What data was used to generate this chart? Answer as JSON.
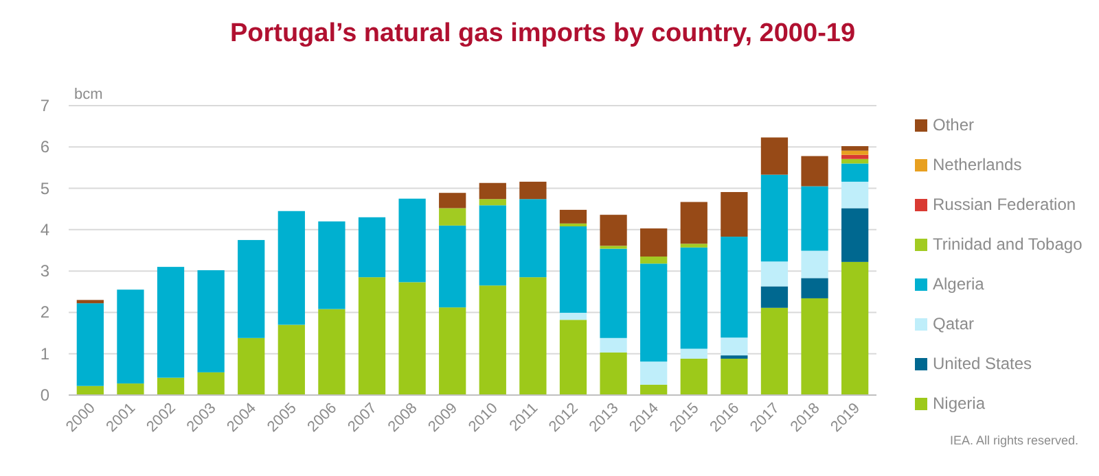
{
  "chart_data": {
    "type": "bar",
    "stacked": true,
    "title": "Portugal’s natural gas imports by country, 2000-19",
    "ylabel": "bcm",
    "categories": [
      "2000",
      "2001",
      "2002",
      "2003",
      "2004",
      "2005",
      "2006",
      "2007",
      "2008",
      "2009",
      "2010",
      "2011",
      "2012",
      "2013",
      "2014",
      "2015",
      "2016",
      "2017",
      "2018",
      "2019"
    ],
    "series": [
      {
        "name": "Nigeria",
        "color": "#9dc91a",
        "values": [
          0.22,
          0.28,
          0.42,
          0.55,
          1.38,
          1.7,
          2.08,
          2.85,
          2.73,
          2.12,
          2.65,
          2.85,
          1.82,
          1.03,
          0.25,
          0.88,
          0.88,
          2.11,
          2.34,
          3.22
        ]
      },
      {
        "name": "United States",
        "color": "#006890",
        "values": [
          null,
          null,
          null,
          null,
          null,
          null,
          null,
          null,
          null,
          null,
          null,
          null,
          null,
          null,
          null,
          null,
          0.08,
          0.52,
          0.49,
          1.3
        ]
      },
      {
        "name": "Qatar",
        "color": "#bfeefa",
        "values": [
          null,
          null,
          null,
          null,
          null,
          null,
          null,
          null,
          null,
          null,
          null,
          null,
          0.17,
          0.35,
          0.56,
          0.24,
          0.43,
          0.6,
          0.66,
          0.64
        ]
      },
      {
        "name": "Algeria",
        "color": "#00b0d0",
        "values": [
          2.0,
          2.27,
          2.68,
          2.47,
          2.37,
          2.75,
          2.12,
          1.45,
          2.02,
          1.98,
          1.94,
          1.89,
          2.09,
          2.16,
          2.37,
          2.45,
          2.44,
          2.1,
          1.56,
          0.44
        ]
      },
      {
        "name": "Trinidad and Tobago",
        "color": "#a2cb22",
        "values": [
          null,
          null,
          null,
          null,
          null,
          null,
          null,
          null,
          null,
          0.42,
          0.15,
          null,
          0.07,
          0.07,
          0.17,
          0.09,
          null,
          null,
          null,
          0.11
        ]
      },
      {
        "name": "Russian Federation",
        "color": "#d93a32",
        "values": [
          null,
          null,
          null,
          null,
          null,
          null,
          null,
          null,
          null,
          null,
          null,
          null,
          null,
          null,
          null,
          null,
          null,
          null,
          null,
          0.1
        ]
      },
      {
        "name": "Netherlands",
        "color": "#e8a020",
        "values": [
          null,
          null,
          null,
          null,
          null,
          null,
          null,
          null,
          null,
          null,
          null,
          null,
          null,
          null,
          null,
          null,
          null,
          null,
          null,
          0.1
        ]
      },
      {
        "name": "Other",
        "color": "#974a17",
        "values": [
          0.08,
          null,
          null,
          null,
          null,
          null,
          null,
          null,
          null,
          0.37,
          0.39,
          0.42,
          0.33,
          0.75,
          0.68,
          1.01,
          1.08,
          0.9,
          0.73,
          0.11
        ]
      }
    ],
    "ylim": [
      0,
      7
    ],
    "yticks": [
      0,
      1,
      2,
      3,
      4,
      5,
      6,
      7
    ],
    "grid": "y",
    "legend": "right",
    "annotations": [
      "IEA. All rights reserved."
    ]
  }
}
